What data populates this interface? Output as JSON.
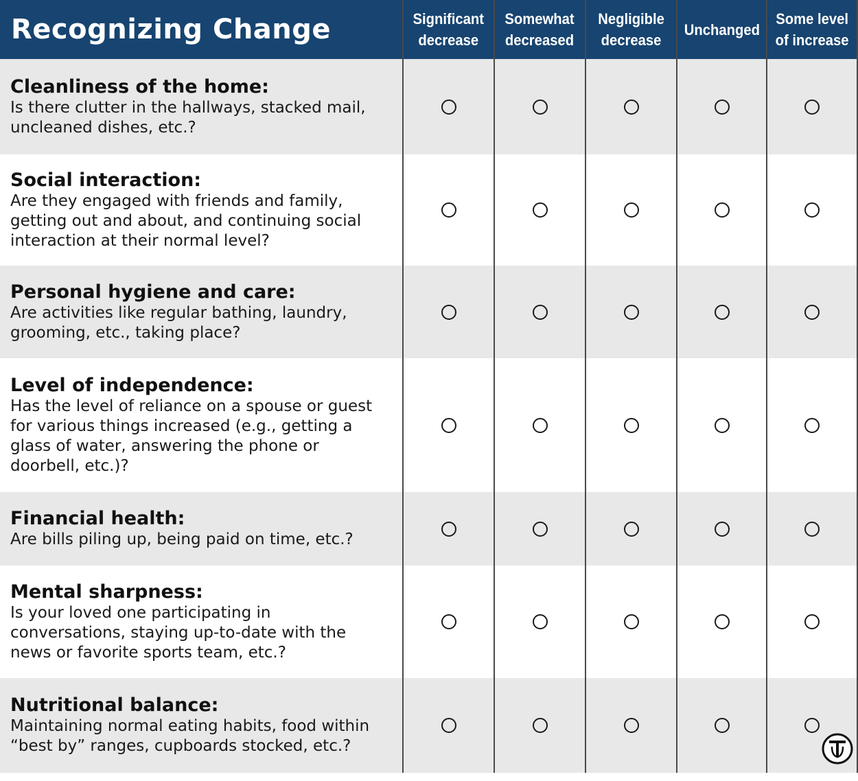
{
  "title": "Recognizing Change",
  "columns": [
    "Significant\ndecrease",
    "Somewhat\ndecreased",
    "Negligible\ndecrease",
    "Unchanged",
    "Some level\nof increase"
  ],
  "rows": [
    {
      "title": "Cleanliness of the home:",
      "description": "Is there clutter in the hallways, stacked mail,\nuncleaned dishes, etc.?"
    },
    {
      "title": "Social interaction:",
      "description": "Are they engaged with friends and family,\ngetting out and about, and continuing social\ninteraction at their normal level?"
    },
    {
      "title": "Personal hygiene and care:",
      "description": "Are activities like regular bathing, laundry,\ngrooming, etc., taking place?"
    },
    {
      "title": "Level of independence:",
      "description": "Has the level of reliance on a spouse or guest\nfor various things increased (e.g., getting a\nglass of water, answering the phone or\ndoorbell, etc.)?"
    },
    {
      "title": "Financial health:",
      "description": "Are bills piling up, being paid on time, etc.?"
    },
    {
      "title": "Mental sharpness:",
      "description": "Is your loved one participating in\nconversations, staying up-to-date with the\nnews or favorite sports team, etc.?"
    },
    {
      "title": "Nutritional balance:",
      "description": "Maintaining normal eating habits, food within\n“best by” ranges, cupboards stocked, etc.?"
    }
  ],
  "colors": {
    "header_bg": "#174470",
    "shaded_row": "#e8e8e8",
    "white_row": "#ffffff",
    "grid_line": "#4a4a4a"
  },
  "logo_icon": "naps-logo-icon"
}
